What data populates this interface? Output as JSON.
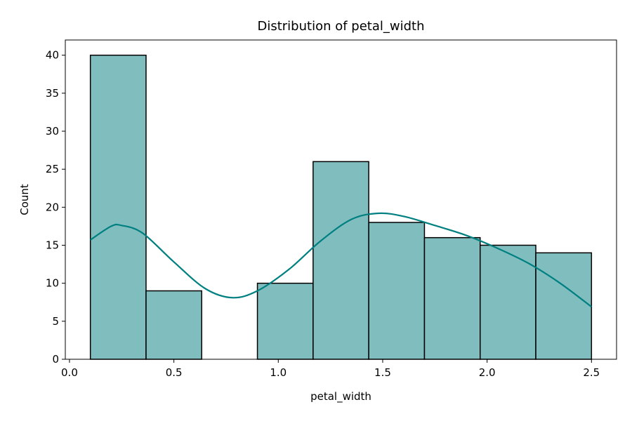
{
  "chart_data": {
    "type": "bar",
    "title": "Distribution of petal_width",
    "xlabel": "petal_width",
    "ylabel": "Count",
    "xlim": [
      -0.02,
      2.62
    ],
    "ylim": [
      0,
      42
    ],
    "xticks": [
      0.0,
      0.5,
      1.0,
      1.5,
      2.0,
      2.5
    ],
    "xtick_labels": [
      "0.0",
      "0.5",
      "1.0",
      "1.5",
      "2.0",
      "2.5"
    ],
    "yticks": [
      0,
      5,
      10,
      15,
      20,
      25,
      30,
      35,
      40
    ],
    "ytick_labels": [
      "0",
      "5",
      "10",
      "15",
      "20",
      "25",
      "30",
      "35",
      "40"
    ],
    "grid": false,
    "bins": [
      {
        "x0": 0.1,
        "x1": 0.3667,
        "count": 40
      },
      {
        "x0": 0.3667,
        "x1": 0.6333,
        "count": 9
      },
      {
        "x0": 0.6333,
        "x1": 0.9,
        "count": 0
      },
      {
        "x0": 0.9,
        "x1": 1.1667,
        "count": 10
      },
      {
        "x0": 1.1667,
        "x1": 1.4333,
        "count": 26
      },
      {
        "x0": 1.4333,
        "x1": 1.7,
        "count": 18
      },
      {
        "x0": 1.7,
        "x1": 1.9667,
        "count": 16
      },
      {
        "x0": 1.9667,
        "x1": 2.2333,
        "count": 15
      },
      {
        "x0": 2.2333,
        "x1": 2.5,
        "count": 14
      }
    ],
    "kde": {
      "x": [
        0.1,
        0.2,
        0.25,
        0.35,
        0.5,
        0.65,
        0.78,
        0.9,
        1.05,
        1.2,
        1.35,
        1.48,
        1.6,
        1.75,
        1.9,
        2.05,
        2.2,
        2.35,
        2.5
      ],
      "y": [
        15.7,
        17.5,
        17.6,
        16.6,
        12.8,
        9.3,
        8.1,
        9.0,
        11.8,
        15.5,
        18.4,
        19.2,
        18.8,
        17.6,
        16.3,
        14.6,
        12.6,
        10.0,
        6.9
      ]
    },
    "colors": {
      "bar_fill": "#80bdbe",
      "bar_edge": "#000000",
      "kde_line": "#008080"
    }
  }
}
